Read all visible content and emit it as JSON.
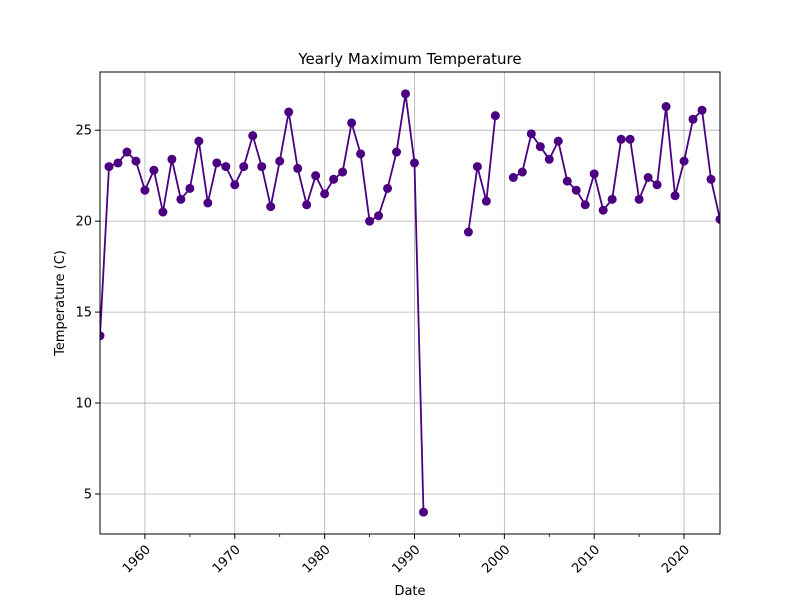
{
  "chart_data": {
    "type": "line",
    "title": "Yearly Maximum Temperature",
    "xlabel": "Date",
    "ylabel": "Temperature (C)",
    "xlim": [
      1955,
      2024
    ],
    "ylim": [
      2.8,
      28.2
    ],
    "xticks": [
      1960,
      1970,
      1980,
      1990,
      2000,
      2010,
      2020
    ],
    "yticks": [
      5,
      10,
      15,
      20,
      25
    ],
    "grid": true,
    "marker": "circle",
    "series": [
      {
        "color": "#4b0082",
        "points": [
          [
            1955,
            13.7
          ],
          [
            1956,
            23.0
          ],
          [
            1957,
            23.2
          ],
          [
            1958,
            23.8
          ],
          [
            1959,
            23.3
          ],
          [
            1960,
            21.7
          ],
          [
            1961,
            22.8
          ],
          [
            1962,
            20.5
          ],
          [
            1963,
            23.4
          ],
          [
            1964,
            21.2
          ],
          [
            1965,
            21.8
          ],
          [
            1966,
            24.4
          ],
          [
            1967,
            21.0
          ],
          [
            1968,
            23.2
          ],
          [
            1969,
            23.0
          ],
          [
            1970,
            22.0
          ],
          [
            1971,
            23.0
          ],
          [
            1972,
            24.7
          ],
          [
            1973,
            23.0
          ],
          [
            1974,
            20.8
          ],
          [
            1975,
            23.3
          ],
          [
            1976,
            26.0
          ],
          [
            1977,
            22.9
          ],
          [
            1978,
            20.9
          ],
          [
            1979,
            22.5
          ],
          [
            1980,
            21.5
          ],
          [
            1981,
            22.3
          ],
          [
            1982,
            22.7
          ],
          [
            1983,
            25.4
          ],
          [
            1984,
            23.7
          ],
          [
            1985,
            20.0
          ],
          [
            1986,
            20.3
          ],
          [
            1987,
            21.8
          ],
          [
            1988,
            23.8
          ],
          [
            1989,
            27.0
          ],
          [
            1990,
            23.2
          ],
          [
            1991,
            4.0
          ],
          [
            1992,
            null
          ],
          [
            1993,
            null
          ],
          [
            1994,
            null
          ],
          [
            1995,
            null
          ],
          [
            1996,
            19.4
          ],
          [
            1997,
            23.0
          ],
          [
            1998,
            21.1
          ],
          [
            1999,
            25.8
          ],
          [
            2000,
            null
          ],
          [
            2001,
            22.4
          ],
          [
            2002,
            22.7
          ],
          [
            2003,
            24.8
          ],
          [
            2004,
            24.1
          ],
          [
            2005,
            23.4
          ],
          [
            2006,
            24.4
          ],
          [
            2007,
            22.2
          ],
          [
            2008,
            21.7
          ],
          [
            2009,
            20.9
          ],
          [
            2010,
            22.6
          ],
          [
            2011,
            20.6
          ],
          [
            2012,
            21.2
          ],
          [
            2013,
            24.5
          ],
          [
            2014,
            24.5
          ],
          [
            2015,
            21.2
          ],
          [
            2016,
            22.4
          ],
          [
            2017,
            22.0
          ],
          [
            2018,
            26.3
          ],
          [
            2019,
            21.4
          ],
          [
            2020,
            23.3
          ],
          [
            2021,
            25.6
          ],
          [
            2022,
            26.1
          ],
          [
            2023,
            22.3
          ],
          [
            2024,
            20.1
          ]
        ]
      }
    ]
  }
}
